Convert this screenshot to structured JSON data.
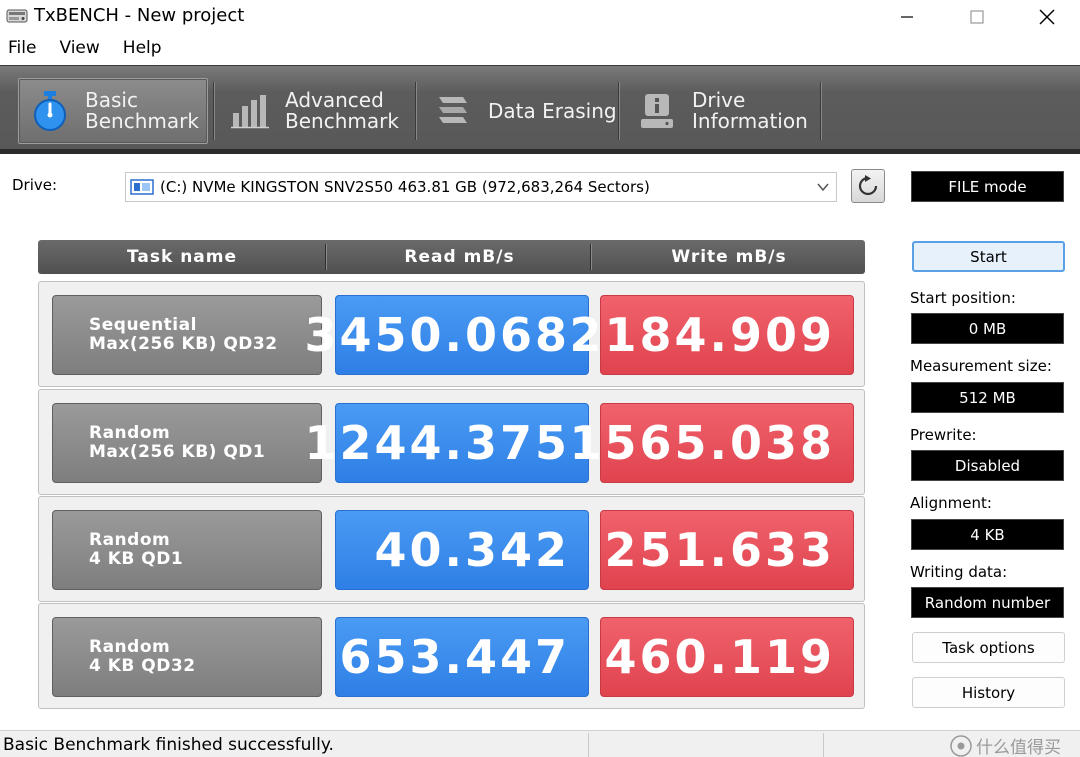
{
  "window": {
    "title": "TxBENCH - New project"
  },
  "menu": [
    "File",
    "View",
    "Help"
  ],
  "toolbar": {
    "tabs": [
      {
        "label": "Basic\nBenchmark",
        "icon": "stopwatch-icon",
        "active": true
      },
      {
        "label": "Advanced\nBenchmark",
        "icon": "bar-chart-icon",
        "active": false
      },
      {
        "label": "Data Erasing",
        "icon": "eraser-icon",
        "active": false
      },
      {
        "label": "Drive\nInformation",
        "icon": "drive-info-icon",
        "active": false
      }
    ]
  },
  "drive": {
    "label": "Drive:",
    "value": "(C:) NVMe KINGSTON SNV2S50  463.81 GB (972,683,264 Sectors)"
  },
  "mode": "FILE mode",
  "table": {
    "headers": {
      "task": "Task name",
      "read": "Read mB/s",
      "write": "Write mB/s"
    },
    "rows": [
      {
        "task_line1": "Sequential",
        "task_line2": "Max(256 KB) QD32",
        "read": "3450.068",
        "write": "2184.909"
      },
      {
        "task_line1": "Random",
        "task_line2": "Max(256 KB) QD1",
        "read": "1244.375",
        "write": "1565.038"
      },
      {
        "task_line1": "Random",
        "task_line2": "4 KB QD1",
        "read": "40.342",
        "write": "251.633"
      },
      {
        "task_line1": "Random",
        "task_line2": "4 KB QD32",
        "read": "653.447",
        "write": "460.119"
      }
    ]
  },
  "settings": {
    "start_label": "Start",
    "start_position_label": "Start position:",
    "start_position": "0 MB",
    "measurement_size_label": "Measurement size:",
    "measurement_size": "512 MB",
    "prewrite_label": "Prewrite:",
    "prewrite": "Disabled",
    "alignment_label": "Alignment:",
    "alignment": "4 KB",
    "writing_data_label": "Writing data:",
    "writing_data": "Random number",
    "task_options_label": "Task options",
    "history_label": "History"
  },
  "status": {
    "text": "Basic Benchmark finished successfully.",
    "watermark": "什么值得买"
  },
  "colors": {
    "read": "#3a8ef0",
    "write": "#e8505b",
    "toolbar": "#5e5e5e"
  }
}
